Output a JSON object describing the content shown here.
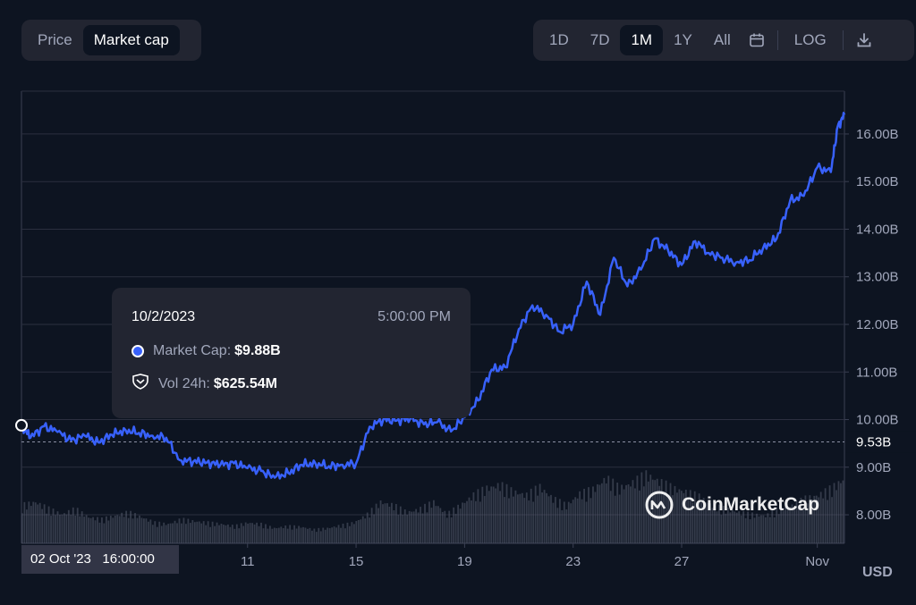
{
  "toggle": {
    "price_label": "Price",
    "market_cap_label": "Market cap",
    "active": "market_cap"
  },
  "ranges": {
    "d1": "1D",
    "d7": "7D",
    "m1": "1M",
    "y1": "1Y",
    "all": "All",
    "active": "1M"
  },
  "scale": {
    "log_label": "LOG"
  },
  "icons": {
    "calendar": "calendar-icon",
    "download": "download-icon",
    "market_cap_dot": "circle-icon",
    "volume": "shield-icon",
    "logo": "coinmarketcap-logo-icon"
  },
  "tooltip": {
    "date": "10/2/2023",
    "time": "5:00:00 PM",
    "market_cap_label": "Market Cap:",
    "market_cap_value": "$9.88B",
    "volume_label": "Vol 24h:",
    "volume_value": "$625.54M"
  },
  "watermark": "CoinMarketCap",
  "crosshair_label": "02 Oct '23   16:00:00",
  "currency": "USD",
  "colors": {
    "line": "#3861fb",
    "background": "#0d1421",
    "panel": "#222531",
    "grid": "#2b2f3f",
    "volume": "#565b6e"
  },
  "chart_data": {
    "type": "line",
    "y_unit": "USD (billions)",
    "x_range": [
      "2023-10-02T16:00",
      "2023-11-02T00:00"
    ],
    "ylim": [
      7.4,
      16.9
    ],
    "y_ticks": [
      {
        "v": 8,
        "label": "8.00B"
      },
      {
        "v": 9,
        "label": "9.00B"
      },
      {
        "v": 10,
        "label": "10.00B"
      },
      {
        "v": 11,
        "label": "11.00B"
      },
      {
        "v": 12,
        "label": "12.00B"
      },
      {
        "v": 13,
        "label": "13.00B"
      },
      {
        "v": 14,
        "label": "14.00B"
      },
      {
        "v": 15,
        "label": "15.00B"
      },
      {
        "v": 16,
        "label": "16.00B"
      }
    ],
    "x_ticks": [
      {
        "t": "2023-10-11T00:00",
        "label": "11"
      },
      {
        "t": "2023-10-15T00:00",
        "label": "15"
      },
      {
        "t": "2023-10-19T00:00",
        "label": "19"
      },
      {
        "t": "2023-10-23T00:00",
        "label": "23"
      },
      {
        "t": "2023-10-27T00:00",
        "label": "27"
      },
      {
        "t": "2023-11-01T00:00",
        "label": "Nov"
      }
    ],
    "reference_line": {
      "value": 9.53,
      "label": "9.53B"
    },
    "series": [
      {
        "name": "Market Cap",
        "x": [
          "2023-10-02T16:00",
          "2023-10-03T00:00",
          "2023-10-03T12:00",
          "2023-10-04T00:00",
          "2023-10-04T12:00",
          "2023-10-05T00:00",
          "2023-10-05T12:00",
          "2023-10-06T00:00",
          "2023-10-06T12:00",
          "2023-10-07T00:00",
          "2023-10-07T12:00",
          "2023-10-08T00:00",
          "2023-10-08T12:00",
          "2023-10-09T00:00",
          "2023-10-09T12:00",
          "2023-10-10T00:00",
          "2023-10-10T12:00",
          "2023-10-11T00:00",
          "2023-10-11T12:00",
          "2023-10-12T00:00",
          "2023-10-12T12:00",
          "2023-10-13T00:00",
          "2023-10-13T12:00",
          "2023-10-14T00:00",
          "2023-10-14T12:00",
          "2023-10-15T00:00",
          "2023-10-15T12:00",
          "2023-10-16T00:00",
          "2023-10-16T12:00",
          "2023-10-17T00:00",
          "2023-10-17T12:00",
          "2023-10-18T00:00",
          "2023-10-18T12:00",
          "2023-10-19T00:00",
          "2023-10-19T12:00",
          "2023-10-20T00:00",
          "2023-10-20T12:00",
          "2023-10-21T00:00",
          "2023-10-21T12:00",
          "2023-10-22T00:00",
          "2023-10-22T12:00",
          "2023-10-23T00:00",
          "2023-10-23T12:00",
          "2023-10-24T00:00",
          "2023-10-24T12:00",
          "2023-10-25T00:00",
          "2023-10-25T12:00",
          "2023-10-26T00:00",
          "2023-10-26T12:00",
          "2023-10-27T00:00",
          "2023-10-27T12:00",
          "2023-10-28T00:00",
          "2023-10-28T12:00",
          "2023-10-29T00:00",
          "2023-10-29T12:00",
          "2023-10-30T00:00",
          "2023-10-30T12:00",
          "2023-10-31T00:00",
          "2023-10-31T12:00",
          "2023-11-01T00:00",
          "2023-11-01T12:00",
          "2023-11-01T18:00",
          "2023-11-02T00:00"
        ],
        "values": [
          9.88,
          9.62,
          9.86,
          9.74,
          9.56,
          9.66,
          9.52,
          9.68,
          9.78,
          9.72,
          9.66,
          9.62,
          9.15,
          9.12,
          9.1,
          9.05,
          9.08,
          8.98,
          8.92,
          8.78,
          8.88,
          9.05,
          9.08,
          9.02,
          9.05,
          9.08,
          9.85,
          10.0,
          9.98,
          10.02,
          9.9,
          9.95,
          9.75,
          10.05,
          10.4,
          11.05,
          11.1,
          11.9,
          12.4,
          12.2,
          11.85,
          12.0,
          12.9,
          12.2,
          13.4,
          12.8,
          13.15,
          13.8,
          13.55,
          13.25,
          13.75,
          13.5,
          13.4,
          13.3,
          13.35,
          13.6,
          13.8,
          14.6,
          14.7,
          15.3,
          15.2,
          16.15,
          16.4
        ]
      }
    ],
    "volume_relative": [
      0.55,
      0.6,
      0.5,
      0.42,
      0.5,
      0.38,
      0.35,
      0.4,
      0.45,
      0.38,
      0.3,
      0.28,
      0.35,
      0.32,
      0.3,
      0.28,
      0.25,
      0.3,
      0.28,
      0.22,
      0.25,
      0.24,
      0.2,
      0.22,
      0.26,
      0.3,
      0.42,
      0.6,
      0.55,
      0.45,
      0.5,
      0.6,
      0.42,
      0.55,
      0.7,
      0.8,
      0.85,
      0.75,
      0.7,
      0.82,
      0.65,
      0.55,
      0.72,
      0.78,
      0.95,
      0.8,
      0.88,
      1.0,
      0.9,
      0.8,
      0.75,
      0.68,
      0.55,
      0.5,
      0.45,
      0.42,
      0.4,
      0.5,
      0.55,
      0.65,
      0.7,
      0.8,
      0.95
    ]
  }
}
